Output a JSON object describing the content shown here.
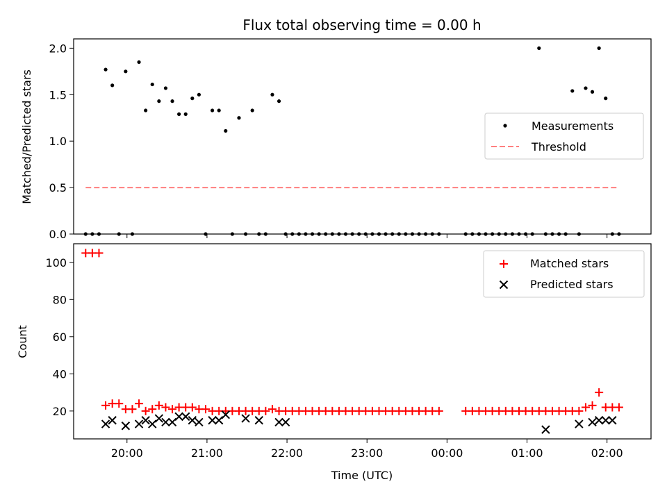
{
  "chart_data": [
    {
      "type": "scatter",
      "title": "Flux total observing time = 0.00 h",
      "xlabel": "",
      "ylabel": "Matched/Predicted stars",
      "xlim": [
        "19:20",
        "02:33"
      ],
      "ylim": [
        0,
        2.1
      ],
      "yticks": [
        "0.0",
        "0.5",
        "1.0",
        "1.5",
        "2.0"
      ],
      "grid": false,
      "legend_position": "center-right",
      "series": [
        {
          "name": "Measurements",
          "marker": "dot",
          "color": "#000000",
          "x": [
            "19:29",
            "19:34",
            "19:39",
            "19:44",
            "19:49",
            "19:54",
            "19:59",
            "20:04",
            "20:09",
            "20:14",
            "20:19",
            "20:24",
            "20:29",
            "20:34",
            "20:39",
            "20:44",
            "20:49",
            "20:54",
            "20:59",
            "21:04",
            "21:09",
            "21:14",
            "21:19",
            "21:24",
            "21:29",
            "21:34",
            "21:39",
            "21:44",
            "21:49",
            "21:54",
            "21:59",
            "22:04",
            "22:09",
            "22:14",
            "22:19",
            "22:24",
            "22:29",
            "22:34",
            "22:39",
            "22:44",
            "22:49",
            "22:54",
            "22:59",
            "23:04",
            "23:09",
            "23:14",
            "23:19",
            "23:24",
            "23:29",
            "23:34",
            "23:39",
            "23:44",
            "23:49",
            "23:54",
            "00:14",
            "00:19",
            "00:24",
            "00:29",
            "00:34",
            "00:39",
            "00:44",
            "00:49",
            "00:54",
            "00:59",
            "01:04",
            "01:09",
            "01:14",
            "01:19",
            "01:24",
            "01:29",
            "01:34",
            "01:39",
            "01:44",
            "01:49",
            "01:54",
            "01:59",
            "02:04",
            "02:09"
          ],
          "y": [
            0,
            0,
            0,
            1.77,
            1.6,
            0,
            1.75,
            0,
            1.85,
            1.33,
            1.61,
            1.43,
            1.57,
            1.43,
            1.29,
            1.29,
            1.46,
            1.5,
            0,
            1.33,
            1.33,
            1.11,
            0,
            1.25,
            0,
            1.33,
            0,
            0,
            1.5,
            1.43,
            0,
            0,
            0,
            0,
            0,
            0,
            0,
            0,
            0,
            0,
            0,
            0,
            0,
            0,
            0,
            0,
            0,
            0,
            0,
            0,
            0,
            0,
            0,
            0,
            0,
            0,
            0,
            0,
            0,
            0,
            0,
            0,
            0,
            0,
            0,
            2.0,
            0,
            0,
            0,
            0,
            1.54,
            0,
            1.57,
            1.53,
            2.0,
            1.46,
            0,
            0
          ]
        },
        {
          "name": "Threshold",
          "marker": "dashed-line",
          "color": "#ff7f7f",
          "x": [
            "19:29",
            "02:09"
          ],
          "y": [
            0.5,
            0.5
          ]
        }
      ]
    },
    {
      "type": "scatter",
      "title": "",
      "xlabel": "Time (UTC)",
      "ylabel": "Count",
      "xlim": [
        "19:20",
        "02:33"
      ],
      "ylim": [
        5,
        110
      ],
      "yticks": [
        "20",
        "40",
        "60",
        "80",
        "100"
      ],
      "xticks": [
        "20:00",
        "21:00",
        "22:00",
        "23:00",
        "00:00",
        "01:00",
        "02:00"
      ],
      "grid": false,
      "legend_position": "top-right",
      "series": [
        {
          "name": "Matched stars",
          "marker": "plus",
          "color": "#ff0000",
          "x": [
            "19:29",
            "19:34",
            "19:39",
            "19:44",
            "19:49",
            "19:54",
            "19:59",
            "20:04",
            "20:09",
            "20:14",
            "20:19",
            "20:24",
            "20:29",
            "20:34",
            "20:39",
            "20:44",
            "20:49",
            "20:54",
            "20:59",
            "21:04",
            "21:09",
            "21:14",
            "21:19",
            "21:24",
            "21:29",
            "21:34",
            "21:39",
            "21:44",
            "21:49",
            "21:54",
            "21:59",
            "22:04",
            "22:09",
            "22:14",
            "22:19",
            "22:24",
            "22:29",
            "22:34",
            "22:39",
            "22:44",
            "22:49",
            "22:54",
            "22:59",
            "23:04",
            "23:09",
            "23:14",
            "23:19",
            "23:24",
            "23:29",
            "23:34",
            "23:39",
            "23:44",
            "23:49",
            "23:54",
            "00:14",
            "00:19",
            "00:24",
            "00:29",
            "00:34",
            "00:39",
            "00:44",
            "00:49",
            "00:54",
            "00:59",
            "01:04",
            "01:09",
            "01:14",
            "01:19",
            "01:24",
            "01:29",
            "01:34",
            "01:39",
            "01:44",
            "01:49",
            "01:54",
            "01:59",
            "02:04",
            "02:09"
          ],
          "y": [
            105,
            105,
            105,
            23,
            24,
            24,
            21,
            21,
            24,
            20,
            21,
            23,
            22,
            21,
            22,
            22,
            22,
            21,
            21,
            20,
            20,
            20,
            20,
            20,
            20,
            20,
            20,
            20,
            21,
            20,
            20,
            20,
            20,
            20,
            20,
            20,
            20,
            20,
            20,
            20,
            20,
            20,
            20,
            20,
            20,
            20,
            20,
            20,
            20,
            20,
            20,
            20,
            20,
            20,
            20,
            20,
            20,
            20,
            20,
            20,
            20,
            20,
            20,
            20,
            20,
            20,
            20,
            20,
            20,
            20,
            20,
            20,
            22,
            23,
            30,
            22,
            22,
            22
          ]
        },
        {
          "name": "Predicted stars",
          "marker": "x",
          "color": "#000000",
          "x": [
            "19:44",
            "19:49",
            "19:59",
            "20:09",
            "20:14",
            "20:19",
            "20:24",
            "20:29",
            "20:34",
            "20:39",
            "20:44",
            "20:49",
            "20:54",
            "21:04",
            "21:09",
            "21:14",
            "21:29",
            "21:39",
            "21:54",
            "21:59",
            "01:14",
            "01:39",
            "01:49",
            "01:54",
            "01:59",
            "02:04"
          ],
          "y": [
            13,
            15,
            12,
            13,
            15,
            13,
            16,
            14,
            14,
            17,
            17,
            15,
            14,
            15,
            15,
            18,
            16,
            15,
            14,
            14,
            10,
            13,
            14,
            15,
            15,
            15
          ]
        }
      ]
    }
  ]
}
